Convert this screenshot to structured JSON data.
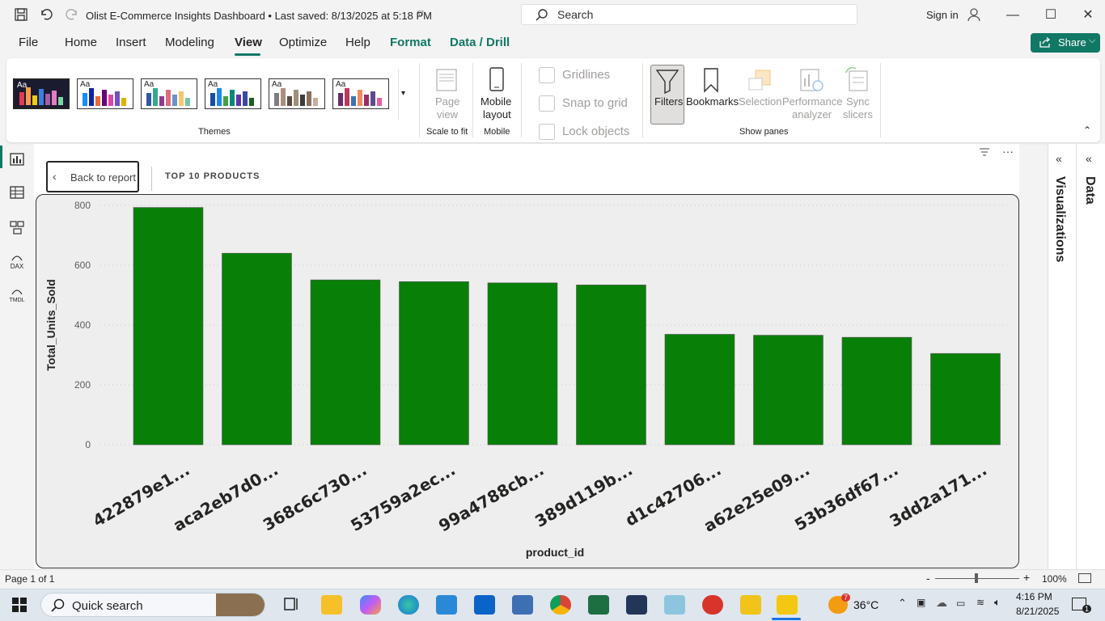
{
  "titlebar": {
    "doc_title": "Olist E-Commerce Insights Dashboard • Last saved: 8/13/2025 at 5:18 PM",
    "search_placeholder": "Search",
    "signin_label": "Sign in"
  },
  "menu": {
    "items": [
      "File",
      "Home",
      "Insert",
      "Modeling",
      "View",
      "Optimize",
      "Help",
      "Format",
      "Data / Drill"
    ],
    "active": "View",
    "share_label": "Share"
  },
  "ribbon": {
    "themes_label": "Themes",
    "page_view_label_1": "Page",
    "page_view_label_2": "view",
    "scale_to_fit_label": "Scale to fit",
    "mobile_layout_1": "Mobile",
    "mobile_layout_2": "layout",
    "mobile_label": "Mobile",
    "gridlines_label": "Gridlines",
    "snap_to_grid_label": "Snap to grid",
    "lock_objects_label": "Lock objects",
    "filters_label": "Filters",
    "bookmarks_label": "Bookmarks",
    "selection_label": "Selection",
    "performance_analyzer_1": "Performance",
    "performance_analyzer_2": "analyzer",
    "sync_slicers_1": "Sync",
    "sync_slicers_2": "slicers",
    "show_panes_label": "Show panes",
    "theme_palettes": [
      [
        "#e8384f",
        "#fd9a47",
        "#eecc16",
        "#3a7fde",
        "#a35ca8",
        "#e37cc7",
        "#7cd6a1"
      ],
      [
        "#118dff",
        "#12239e",
        "#e66c37",
        "#6b007b",
        "#e044a7",
        "#744ec2",
        "#d9b300"
      ],
      [
        "#3257a8",
        "#37a794",
        "#8b3d88",
        "#dd6b7f",
        "#6b91c9",
        "#f5c869",
        "#77c4a8"
      ],
      [
        "#1a4aab",
        "#1e88e5",
        "#43a047",
        "#00897b",
        "#5e35b1",
        "#3949ab",
        "#1b5e20"
      ],
      [
        "#7d7d7d",
        "#b08f7a",
        "#5a4a42",
        "#a0907a",
        "#3c3c3c",
        "#8c6e5d",
        "#c4b09d"
      ],
      [
        "#6a2c70",
        "#b83b5e",
        "#3f72af",
        "#f08a5d",
        "#a1286a",
        "#5e4b8b",
        "#e7609e"
      ]
    ]
  },
  "left_nav": {
    "items": [
      "report-view-icon",
      "table-view-icon",
      "model-view-icon",
      "dax-query-icon",
      "tmdl-view-icon"
    ],
    "dax_text": "DAX",
    "tmdl_text": "TMDL"
  },
  "report": {
    "back_label": "Back to report",
    "page_title": "TOP 10 PRODUCTS"
  },
  "chart_data": {
    "type": "bar",
    "categories": [
      "422879e1...",
      "aca2eb7d0...",
      "368c6c730...",
      "53759a2ec...",
      "99a4788cb...",
      "389d119b...",
      "d1c42706...",
      "a62e25e09...",
      "53b36df67...",
      "3dd2a171..."
    ],
    "values": [
      793,
      640,
      551,
      545,
      541,
      534,
      369,
      366,
      359,
      305
    ],
    "xlabel": "product_id",
    "ylabel": "Total_Units_Sold",
    "ylim": [
      0,
      800
    ],
    "yticks": [
      0,
      200,
      400,
      600,
      800
    ],
    "bar_color": "#088008",
    "grid": true
  },
  "panes": {
    "visualizations_label": "Visualizations",
    "data_label": "Data"
  },
  "status": {
    "page_label": "Page 1 of 1",
    "zoom_label": "100%"
  },
  "taskbar": {
    "search_label": "Quick search",
    "temperature": "36°C",
    "weather_badge": "7",
    "time": "4:16 PM",
    "date": "8/21/2025",
    "notification_count": "1"
  }
}
